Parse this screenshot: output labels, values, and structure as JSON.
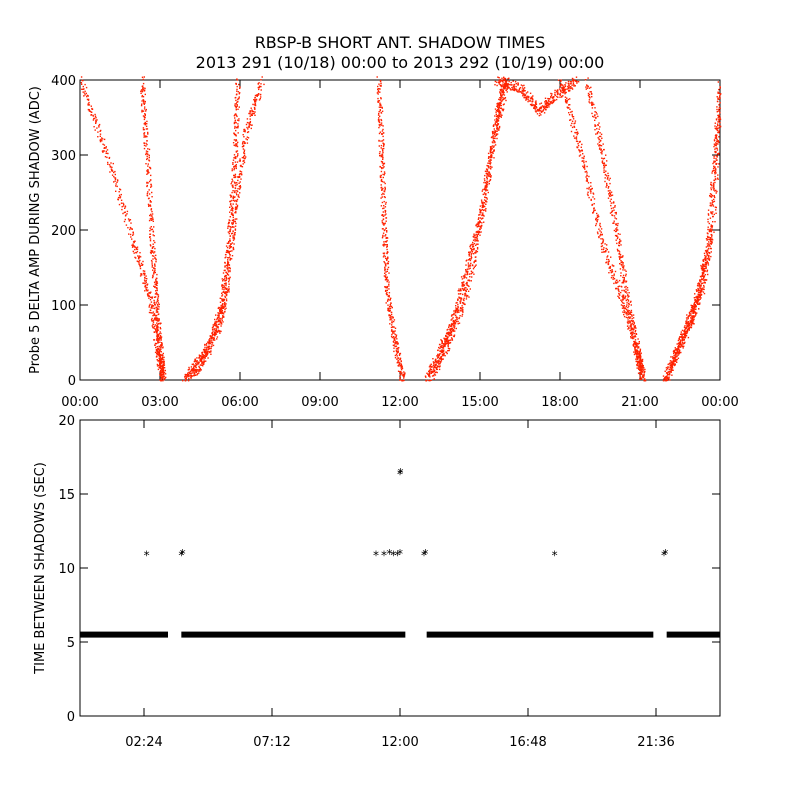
{
  "title": {
    "line1": "RBSP-B SHORT ANT. SHADOW TIMES",
    "line2": "2013 291 (10/18) 00:00 to 2013 292 (10/19) 00:00"
  },
  "chart_data": [
    {
      "type": "scatter",
      "ylabel": "Probe 5 DELTA AMP DURING SHADOW (ADC)",
      "xlabel": "",
      "xlim": [
        0,
        24
      ],
      "ylim": [
        0,
        400
      ],
      "xtick_labels": [
        "00:00",
        "03:00",
        "06:00",
        "09:00",
        "12:00",
        "15:00",
        "18:00",
        "21:00",
        "00:00"
      ],
      "ytick_labels": [
        "0",
        "100",
        "200",
        "300",
        "400"
      ],
      "color": "#ff2200",
      "series": [
        {
          "segment": "decreasing",
          "points": [
            [
              0.0,
              400
            ],
            [
              1.0,
              300
            ],
            [
              2.0,
              185
            ],
            [
              2.6,
              110
            ],
            [
              2.9,
              40
            ],
            [
              3.1,
              0
            ]
          ]
        },
        {
          "segment": "decreasing",
          "points": [
            [
              2.3,
              400
            ],
            [
              2.5,
              300
            ],
            [
              2.7,
              180
            ],
            [
              2.85,
              100
            ],
            [
              3.0,
              40
            ],
            [
              3.1,
              5
            ]
          ]
        },
        {
          "segment": "increasing",
          "points": [
            [
              3.9,
              0
            ],
            [
              4.5,
              30
            ],
            [
              5.2,
              70
            ],
            [
              5.5,
              130
            ],
            [
              5.8,
              230
            ],
            [
              6.2,
              330
            ],
            [
              6.8,
              400
            ]
          ]
        },
        {
          "segment": "increasing",
          "points": [
            [
              4.2,
              5
            ],
            [
              4.8,
              40
            ],
            [
              5.3,
              100
            ],
            [
              5.6,
              200
            ],
            [
              5.8,
              300
            ],
            [
              5.9,
              400
            ]
          ]
        },
        {
          "segment": "decreasing",
          "points": [
            [
              11.2,
              400
            ],
            [
              11.3,
              300
            ],
            [
              11.4,
              200
            ],
            [
              11.5,
              120
            ],
            [
              11.8,
              50
            ],
            [
              12.1,
              0
            ]
          ]
        },
        {
          "segment": "increasing",
          "points": [
            [
              13.0,
              0
            ],
            [
              13.5,
              40
            ],
            [
              14.0,
              80
            ],
            [
              14.5,
              150
            ],
            [
              15.0,
              220
            ],
            [
              15.5,
              320
            ],
            [
              16.0,
              400
            ]
          ]
        },
        {
          "segment": "increasing",
          "points": [
            [
              13.2,
              5
            ],
            [
              13.9,
              60
            ],
            [
              14.6,
              130
            ],
            [
              15.2,
              250
            ],
            [
              15.6,
              350
            ],
            [
              15.9,
              400
            ]
          ]
        },
        {
          "segment": "plateau",
          "points": [
            [
              15.6,
              400
            ],
            [
              16.5,
              390
            ],
            [
              17.2,
              360
            ],
            [
              17.8,
              380
            ],
            [
              18.6,
              400
            ]
          ]
        },
        {
          "segment": "decreasing",
          "points": [
            [
              18.0,
              400
            ],
            [
              18.8,
              300
            ],
            [
              19.5,
              190
            ],
            [
              20.3,
              110
            ],
            [
              20.8,
              45
            ],
            [
              21.1,
              0
            ]
          ]
        },
        {
          "segment": "decreasing",
          "points": [
            [
              19.0,
              400
            ],
            [
              19.6,
              300
            ],
            [
              20.1,
              200
            ],
            [
              20.5,
              110
            ],
            [
              20.9,
              40
            ],
            [
              21.1,
              5
            ]
          ]
        },
        {
          "segment": "increasing",
          "points": [
            [
              21.9,
              0
            ],
            [
              22.4,
              40
            ],
            [
              22.9,
              80
            ],
            [
              23.3,
              120
            ],
            [
              23.7,
              200
            ],
            [
              24.0,
              380
            ]
          ]
        },
        {
          "segment": "increasing",
          "points": [
            [
              22.0,
              5
            ],
            [
              22.6,
              60
            ],
            [
              23.1,
              110
            ],
            [
              23.5,
              170
            ],
            [
              23.8,
              300
            ],
            [
              24.0,
              400
            ]
          ]
        }
      ]
    },
    {
      "type": "scatter",
      "ylabel": "TIME BETWEEN SHADOWS (SEC)",
      "xlabel": "",
      "xlim": [
        0,
        24
      ],
      "ylim": [
        0,
        20
      ],
      "xtick_labels": [
        "02:24",
        "07:12",
        "12:00",
        "16:48",
        "21:36"
      ],
      "ytick_labels": [
        "0",
        "5",
        "10",
        "15",
        "20"
      ],
      "marker": "*",
      "color": "#000000",
      "baseline": {
        "value": 5.5,
        "ranges": [
          [
            0.0,
            3.3
          ],
          [
            3.8,
            12.2
          ],
          [
            13.0,
            21.5
          ],
          [
            22.0,
            24.0
          ]
        ]
      },
      "points": [
        [
          2.5,
          10.9
        ],
        [
          3.8,
          10.9
        ],
        [
          3.85,
          11.0
        ],
        [
          11.1,
          10.9
        ],
        [
          11.4,
          10.9
        ],
        [
          11.6,
          11.0
        ],
        [
          11.75,
          10.9
        ],
        [
          11.9,
          10.9
        ],
        [
          12.0,
          11.0
        ],
        [
          12.0,
          16.4
        ],
        [
          12.02,
          16.5
        ],
        [
          12.9,
          10.9
        ],
        [
          12.95,
          11.0
        ],
        [
          17.8,
          10.9
        ],
        [
          21.9,
          10.9
        ],
        [
          21.95,
          11.0
        ]
      ]
    }
  ]
}
